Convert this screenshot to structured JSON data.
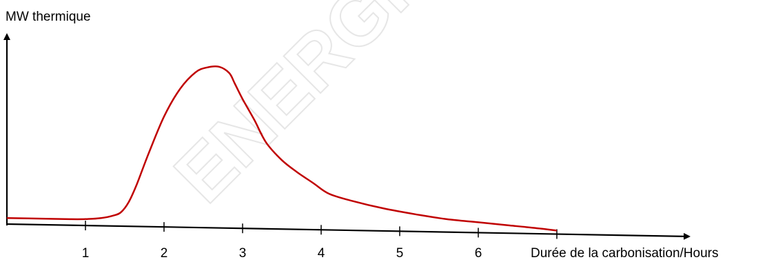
{
  "watermark": "ENERGIE AGROFO",
  "chart_data": {
    "type": "line",
    "ylabel": "MW thermique",
    "xlabel": "Durée de la carbonisation/Hours",
    "x_ticks": [
      1,
      2,
      3,
      4,
      5,
      6,
      7
    ],
    "x_tick_labels": [
      "1",
      "2",
      "3",
      "4",
      "5",
      "6",
      ""
    ],
    "xlim": [
      0,
      8.0
    ],
    "ylim": [
      0,
      1.0
    ],
    "colors": {
      "curve": "#c00000",
      "axis": "#000000"
    },
    "series": [
      {
        "x": [
          0.0,
          0.5,
          0.8,
          1.0,
          1.2,
          1.35,
          1.45,
          1.55,
          1.65,
          1.8,
          2.0,
          2.2,
          2.4,
          2.55,
          2.7,
          2.83,
          2.9,
          3.0,
          3.15,
          3.3,
          3.5,
          3.7,
          3.9,
          4.1,
          4.4,
          4.8,
          5.2,
          5.6,
          6.0,
          6.4,
          6.8,
          7.0
        ],
        "y": [
          0.035,
          0.035,
          0.035,
          0.037,
          0.045,
          0.06,
          0.08,
          0.14,
          0.24,
          0.42,
          0.64,
          0.8,
          0.9,
          0.93,
          0.935,
          0.9,
          0.84,
          0.75,
          0.63,
          0.5,
          0.4,
          0.33,
          0.27,
          0.21,
          0.17,
          0.13,
          0.1,
          0.075,
          0.06,
          0.045,
          0.03,
          0.02
        ]
      }
    ]
  }
}
